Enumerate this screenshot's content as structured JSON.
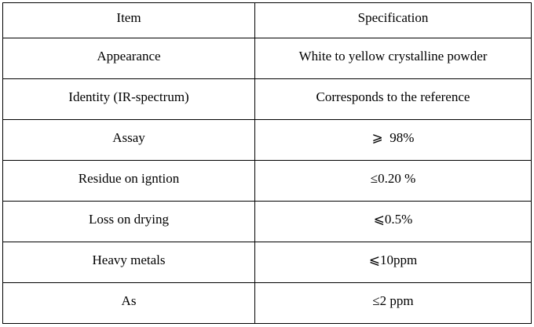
{
  "table": {
    "header": [
      "Item",
      "Specification"
    ],
    "rows": [
      [
        "Appearance",
        "White to yellow crystalline powder"
      ],
      [
        "Identity (IR-spectrum)",
        "Corresponds to the reference"
      ],
      [
        "Assay",
        "⩾  98%"
      ],
      [
        "Residue on igntion",
        "≤0.20 %"
      ],
      [
        "Loss on drying",
        "⩽0.5%"
      ],
      [
        "Heavy metals",
        "⩽10ppm"
      ],
      [
        "As",
        "≤2 ppm"
      ]
    ]
  }
}
